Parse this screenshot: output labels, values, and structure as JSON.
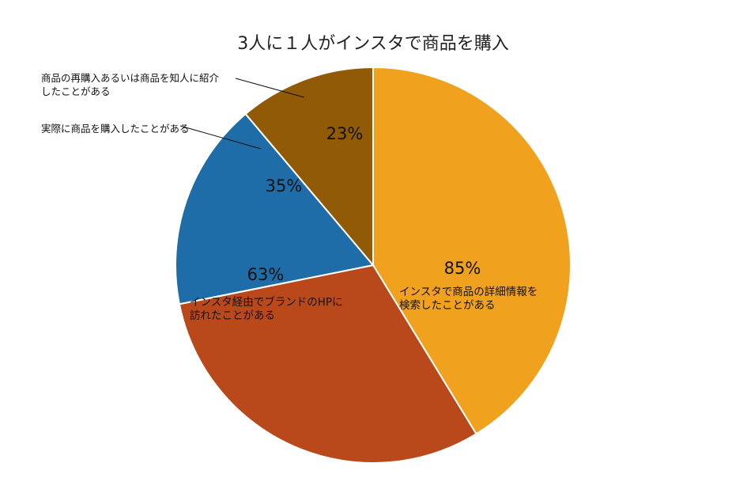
{
  "chart_data": {
    "type": "pie",
    "title": "3人に１人がインスタで商品を購入",
    "slices": [
      {
        "label_lines": [
          "インスタで商品の詳細情報を",
          "検索したことがある"
        ],
        "value": 85,
        "value_label": "85%",
        "color": "#F0A11E"
      },
      {
        "label_lines": [
          "インスタ経由でブランドのHPに",
          "訪れたことがある"
        ],
        "value": 63,
        "value_label": "63%",
        "color": "#B9481A"
      },
      {
        "label_lines": [
          "実際に商品を購入したことがある"
        ],
        "value": 35,
        "value_label": "35%",
        "color": "#1F6DA8"
      },
      {
        "label_lines": [
          "商品の再購入あるいは商品を知人に紹介",
          "したことがある"
        ],
        "value": 23,
        "value_label": "23%",
        "color": "#905A07"
      }
    ],
    "legend": "none"
  }
}
